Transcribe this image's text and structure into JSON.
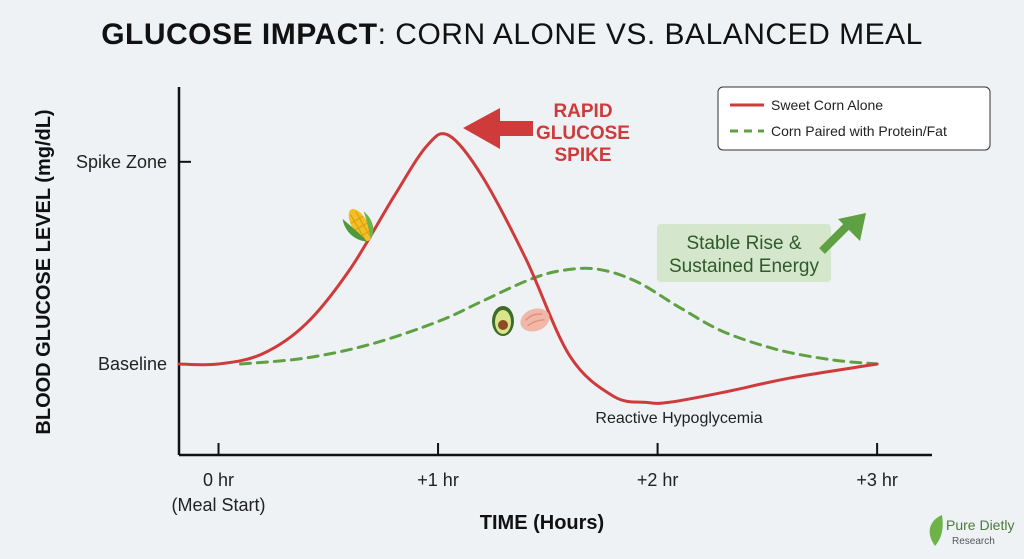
{
  "title": {
    "bold": "GLUCOSE IMPACT",
    "rest": ": CORN ALONE VS. BALANCED MEAL"
  },
  "colors": {
    "corn_alone": "#cf3a3a",
    "balanced": "#5fa043",
    "annotation_box": "#d4e6cc",
    "brand": "#4a7a3c"
  },
  "chart_data": {
    "type": "line",
    "xlabel": "TIME (Hours)",
    "ylabel": "BLOOD GLUCOSE LEVEL (mg/dL)",
    "x_ticks": [
      {
        "value": 0,
        "label": "0 hr",
        "sublabel": "(Meal Start)"
      },
      {
        "value": 1,
        "label": "+1 hr",
        "sublabel": ""
      },
      {
        "value": 2,
        "label": "+2 hr",
        "sublabel": ""
      },
      {
        "value": 3,
        "label": "+3 hr",
        "sublabel": ""
      }
    ],
    "y_ticks": [
      {
        "value": 0,
        "label": "Baseline"
      },
      {
        "value": 1,
        "label": "Spike Zone"
      }
    ],
    "xlim": [
      -0.18,
      3.25
    ],
    "ylim": [
      -0.45,
      1.37
    ],
    "grid": false,
    "legend_position": "top-right",
    "series": [
      {
        "name": "Sweet Corn Alone",
        "style": "solid",
        "x": [
          -0.18,
          0,
          0.2,
          0.4,
          0.6,
          0.8,
          0.95,
          1.05,
          1.2,
          1.4,
          1.6,
          1.8,
          1.95,
          2.05,
          2.3,
          2.6,
          3.0
        ],
        "y": [
          0,
          0,
          0.05,
          0.2,
          0.47,
          0.83,
          1.08,
          1.13,
          0.93,
          0.52,
          0.04,
          -0.16,
          -0.19,
          -0.19,
          -0.14,
          -0.07,
          0
        ]
      },
      {
        "name": "Corn Paired with Protein/Fat",
        "style": "dashed",
        "x": [
          0.1,
          0.4,
          0.7,
          1.0,
          1.2,
          1.4,
          1.55,
          1.72,
          1.9,
          2.1,
          2.3,
          2.55,
          2.8,
          3.0
        ],
        "y": [
          0,
          0.03,
          0.1,
          0.21,
          0.31,
          0.41,
          0.46,
          0.47,
          0.41,
          0.28,
          0.16,
          0.07,
          0.02,
          0
        ]
      }
    ],
    "annotations": {
      "spike": [
        "RAPID",
        "GLUCOSE",
        "SPIKE"
      ],
      "stable": [
        "Stable Rise &",
        "Sustained Energy"
      ],
      "hypo": "Reactive Hypoglycemia"
    }
  },
  "brand": {
    "name": "Pure Dietly",
    "sub": "Research"
  }
}
